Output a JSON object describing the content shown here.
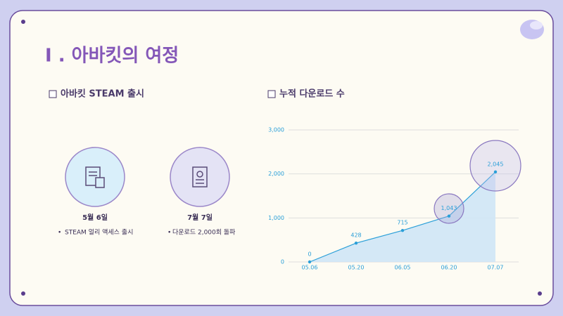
{
  "header": {
    "title": "I . 아바킷의 여정"
  },
  "timeline": {
    "heading": "아바킷 STEAM 출시",
    "items": [
      {
        "date": "5월 6일",
        "text": "STEAM 얼리 액세스 출시"
      },
      {
        "date": "7월 7일",
        "text": "다운로드 2,000회 돌파"
      }
    ]
  },
  "chart_data": {
    "type": "area",
    "title": "누적 다운로드 수",
    "categories": [
      "05.06",
      "05.20",
      "06.05",
      "06.20",
      "07.07"
    ],
    "values": [
      0,
      428,
      715,
      1043,
      2045
    ],
    "value_labels": [
      "0",
      "428",
      "715",
      "1,043",
      "2,045"
    ],
    "color": "#2a9fd8",
    "ylim": [
      0,
      3000
    ],
    "yticks": [
      0,
      {
        "value": 1000,
        "label": "1,000"
      },
      {
        "value": 2000,
        "label": "2,000"
      },
      {
        "value": 3000,
        "label": "3,000"
      }
    ],
    "grid": true
  }
}
